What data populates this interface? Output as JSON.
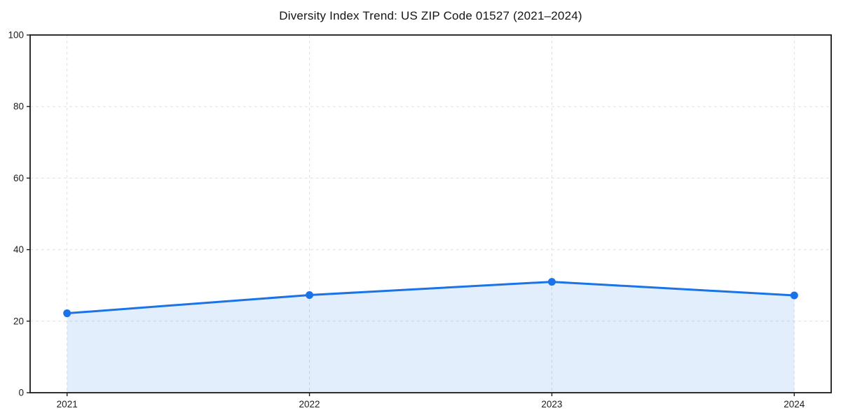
{
  "chart_data": {
    "type": "area",
    "title": "Diversity Index Trend: US ZIP Code 01527 (2021–2024)",
    "categories": [
      "2021",
      "2022",
      "2023",
      "2024"
    ],
    "series": [
      {
        "name": "Diversity Index",
        "values": [
          22.2,
          27.3,
          31.0,
          27.2
        ]
      }
    ],
    "xlabel": "",
    "ylabel": "",
    "ylim": [
      0,
      100
    ],
    "yticks": [
      0,
      20,
      40,
      60,
      80,
      100
    ],
    "grid": "dashed horizontal and vertical gridlines",
    "legend_position": "none",
    "line_color": "#1a73e8",
    "marker_color": "#1a73e8",
    "fill_color": "rgba(26,115,232,0.12)",
    "grid_color": "#e0e0e0",
    "spine_color": "#1a1a1a"
  }
}
